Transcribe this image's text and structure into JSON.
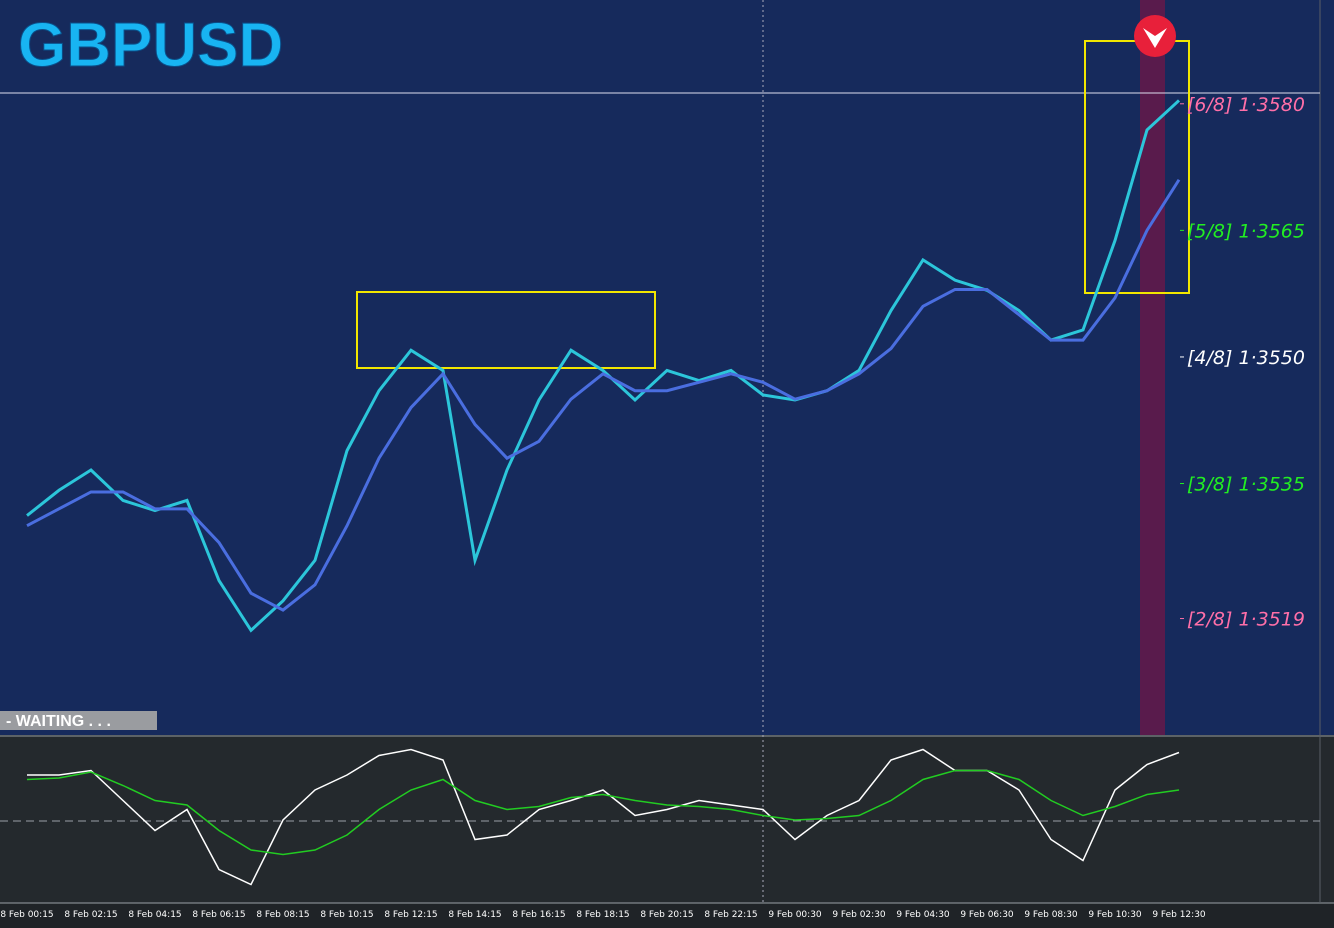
{
  "chart_data": [
    {
      "type": "line",
      "title": "GBPUSD",
      "annotations": [
        "- WAITING . . ."
      ],
      "categories": [
        "8 Feb 00:15",
        null,
        "8 Feb 02:15",
        null,
        "8 Feb 04:15",
        null,
        "8 Feb 06:15",
        null,
        "8 Feb 08:15",
        null,
        "8 Feb 10:15",
        null,
        "8 Feb 12:15",
        null,
        "8 Feb 14:15",
        null,
        "8 Feb 16:15",
        null,
        "8 Feb 18:15",
        null,
        "8 Feb 20:15",
        null,
        "8 Feb 22:15",
        null,
        "9 Feb 00:30",
        null,
        "9 Feb 02:30",
        null,
        "9 Feb 04:30",
        null,
        "9 Feb 06:30",
        null,
        "9 Feb 08:30",
        null,
        "9 Feb 10:30",
        null,
        "9 Feb 12:30"
      ],
      "series": [
        {
          "color": "#2cc6da",
          "values": [
            1.35312,
            1.35342,
            1.35366,
            1.3533,
            1.35318,
            1.3533,
            1.35235,
            1.35176,
            1.35211,
            1.35259,
            1.35389,
            1.3546,
            1.35508,
            1.35484,
            1.35259,
            1.35366,
            1.35449,
            1.35508,
            1.35484,
            1.35449,
            1.35484,
            1.35472,
            1.35484,
            1.35455,
            1.35449,
            1.3546,
            1.35484,
            1.35555,
            1.35615,
            1.35591,
            1.35579,
            1.35555,
            1.3552,
            1.35532,
            1.35638,
            1.35769,
            1.35804
          ]
        },
        {
          "color": "#4a6ee0",
          "values": [
            1.353,
            1.3532,
            1.3534,
            1.3534,
            1.3532,
            1.3532,
            1.3528,
            1.3522,
            1.352,
            1.3523,
            1.353,
            1.3538,
            1.3544,
            1.3548,
            1.3542,
            1.3538,
            1.354,
            1.3545,
            1.3548,
            1.3546,
            1.3546,
            1.3547,
            1.3548,
            1.3547,
            1.3545,
            1.3546,
            1.3548,
            1.3551,
            1.3556,
            1.3558,
            1.3558,
            1.3555,
            1.3552,
            1.3552,
            1.3557,
            1.3565,
            1.3571
          ]
        }
      ],
      "ylim": [
        1.35052,
        1.35923
      ],
      "yticks": [
        {
          "value": 1.358,
          "label": "[6/8] 1·3580"
        },
        {
          "value": 1.3565,
          "label": "[5/8] 1·3565"
        },
        {
          "value": 1.355,
          "label": "[4/8] 1·3550"
        },
        {
          "value": 1.3535,
          "label": "[3/8] 1·3535"
        },
        {
          "value": 1.3519,
          "label": "[2/8] 1·3519"
        }
      ],
      "ytick_colors": [
        "#ff6fa8",
        "#22ee22",
        "#ffffff",
        "#22ee22",
        "#ff6fa8"
      ]
    },
    {
      "type": "line",
      "series": [
        {
          "color": "#ffffff",
          "values": [
            80,
            80,
            83,
            63,
            43,
            57,
            17,
            7,
            50,
            70,
            80,
            93,
            97,
            90,
            37,
            40,
            57,
            63,
            70,
            53,
            57,
            63,
            60,
            57,
            37,
            53,
            63,
            90,
            97,
            83,
            83,
            70,
            37,
            23,
            70,
            87,
            95
          ]
        },
        {
          "color": "#22cc22",
          "values": [
            77,
            78,
            82,
            73,
            63,
            60,
            43,
            30,
            27,
            30,
            40,
            57,
            70,
            77,
            63,
            57,
            59,
            65,
            67,
            63,
            60,
            59,
            57,
            53,
            50,
            51,
            53,
            63,
            77,
            83,
            83,
            77,
            63,
            53,
            59,
            67,
            70
          ]
        }
      ],
      "ylim": [
        0,
        100
      ]
    }
  ]
}
